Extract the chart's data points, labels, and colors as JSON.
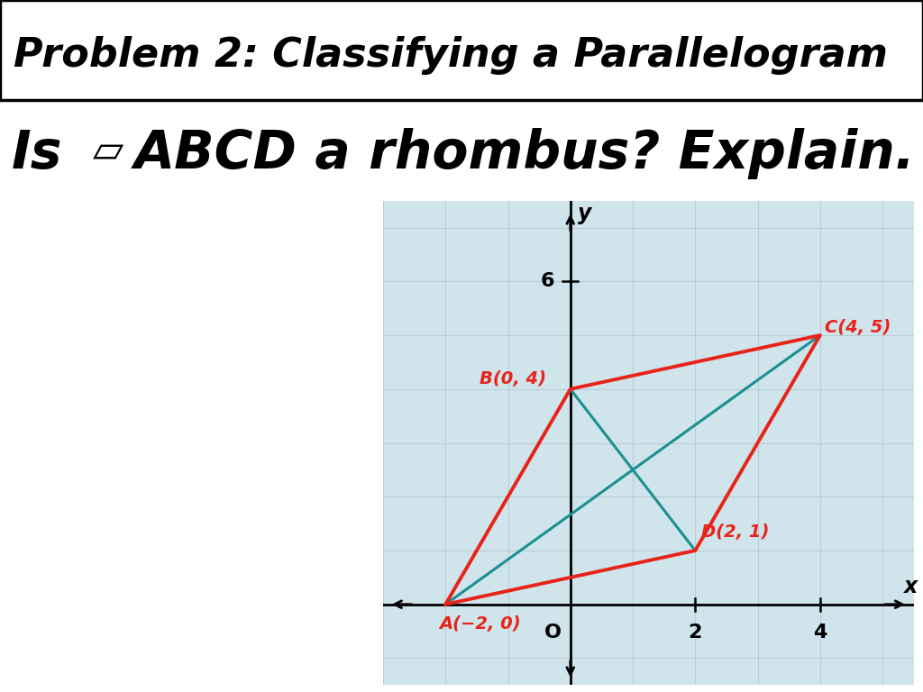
{
  "title": "Problem 2: Classifying a Parallelogram",
  "points": {
    "A": [
      -2,
      0
    ],
    "B": [
      0,
      4
    ],
    "C": [
      4,
      5
    ],
    "D": [
      2,
      1
    ]
  },
  "parallelogram_color": "#e8231a",
  "diagonal_color": "#1a9090",
  "parallelogram_lw": 2.8,
  "diagonal_lw": 2.2,
  "grid_color": "#b8cdd6",
  "bg_color": "#d0e4ec",
  "xlim": [
    -3,
    5.5
  ],
  "ylim": [
    -1.5,
    7.5
  ],
  "xticks_labeled": [
    2,
    4
  ],
  "yticks_labeled": [
    6
  ],
  "xlabel": "x",
  "ylabel": "y",
  "label_color_red": "#e8231a"
}
